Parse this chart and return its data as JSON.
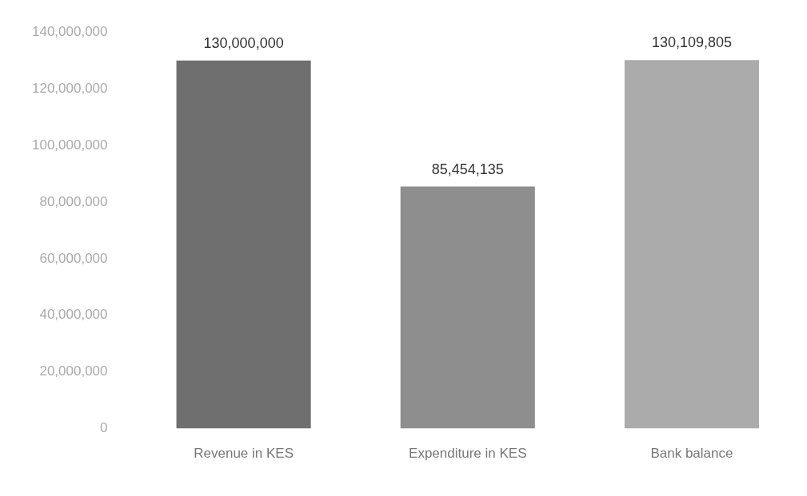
{
  "chart_data": {
    "type": "bar",
    "categories": [
      "Revenue in KES",
      "Expenditure in KES",
      "Bank balance"
    ],
    "values": [
      130000000,
      85454135,
      130109805
    ],
    "colors": [
      "#6f6f6f",
      "#8e8e8e",
      "#ababab"
    ],
    "ylim": [
      0,
      140000000
    ],
    "yticks": [
      0,
      {
        "value": 20000000,
        "label": "20,000,000"
      },
      {
        "value": 40000000,
        "label": "40,000,000"
      },
      {
        "value": 60000000,
        "label": "60,000,000"
      },
      {
        "value": 80000000,
        "label": "80,000,000"
      },
      {
        "value": 100000000,
        "label": "100,000,000"
      },
      {
        "value": 120000000,
        "label": "120,000,000"
      },
      {
        "value": 140000000,
        "label": "140,000,000"
      }
    ],
    "grid": false,
    "legend": false,
    "value_labels": [
      "130,000,000",
      "85,454,135",
      "130,109,805"
    ]
  }
}
